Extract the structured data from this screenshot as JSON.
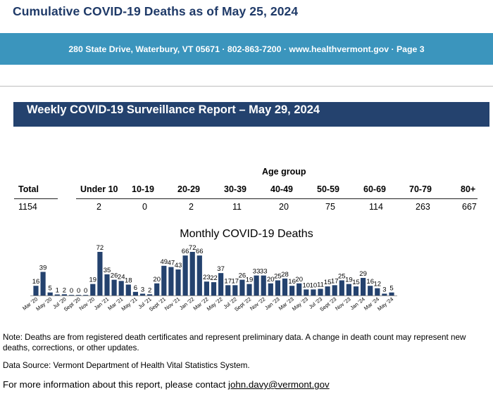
{
  "header": {
    "title": "Cumulative COVID-19 Deaths as of May 25, 2024",
    "address_line": "280 State Drive, Waterbury, VT 05671 · 802-863-7200 · www.healthvermont.gov  · Page 3",
    "report_title": "Weekly COVID-19 Surveillance Report – May 29, 2024"
  },
  "age_table": {
    "group_title": "Age group",
    "total_label": "Total",
    "total_value": "1154",
    "groups": [
      {
        "label": "Under 10",
        "value": "2"
      },
      {
        "label": "10-19",
        "value": "0"
      },
      {
        "label": "20-29",
        "value": "2"
      },
      {
        "label": "30-39",
        "value": "11"
      },
      {
        "label": "40-49",
        "value": "20"
      },
      {
        "label": "50-59",
        "value": "75"
      },
      {
        "label": "60-69",
        "value": "114"
      },
      {
        "label": "70-79",
        "value": "263"
      },
      {
        "label": "80+",
        "value": "667"
      }
    ]
  },
  "chart_data": {
    "type": "bar",
    "title": "Monthly COVID-19 Deaths",
    "bar_color": "#24426e",
    "values": [
      16,
      39,
      5,
      1,
      2,
      0,
      0,
      0,
      19,
      72,
      35,
      26,
      24,
      18,
      6,
      3,
      2,
      20,
      49,
      47,
      43,
      66,
      72,
      66,
      23,
      22,
      37,
      17,
      17,
      26,
      19,
      33,
      33,
      20,
      25,
      28,
      16,
      20,
      10,
      10,
      11,
      15,
      17,
      25,
      19,
      15,
      29,
      16,
      12,
      3,
      5
    ],
    "tick_labels": [
      "Mar '20",
      "May '20",
      "Jul '20",
      "Sept '20",
      "Nov '20",
      "Jan '21",
      "Mar '21",
      "May '21",
      "Jul '21",
      "Sept '21",
      "Nov '21",
      "Jan '22",
      "Mar '22",
      "May '22",
      "Jul '22",
      "Sept '22",
      "Nov '22",
      "Jan '23",
      "Mar '23",
      "May '23",
      "Jul '23",
      "Sept '23",
      "Nov '23",
      "Jan '24",
      "Mar '24",
      "May '24"
    ]
  },
  "footer": {
    "note": "Note: Deaths are from registered death certificates and represent preliminary data. A change in death count may represent new deaths, corrections, or other updates.",
    "source": "Data Source: Vermont Department of Health Vital Statistics System.",
    "contact_prefix": "For more information about this report, please contact ",
    "contact_email": "john.davy@vermont.gov"
  }
}
